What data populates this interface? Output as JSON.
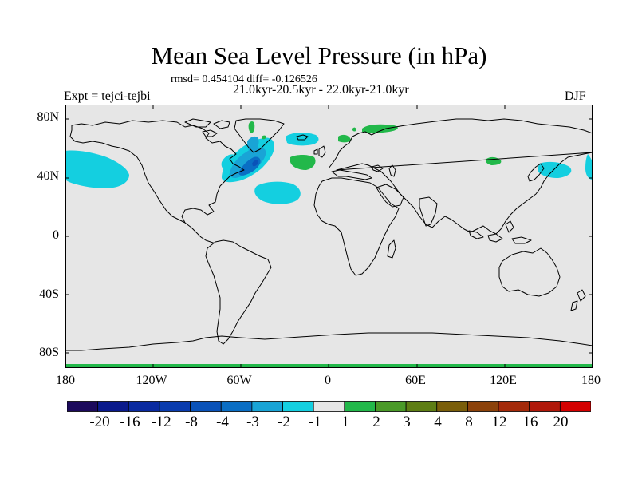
{
  "title": "Mean Sea Level Pressure (in hPa)",
  "stats_line": "rmsd= 0.454104 diff= -0.126526",
  "period_line": "21.0kyr-20.5kyr - 22.0kyr-21.0kyr",
  "left_label": "Expt = tejci-tejbi",
  "right_label": "DJF",
  "axes": {
    "lat_ticks": [
      "80N",
      "40N",
      "0",
      "40S",
      "80S"
    ],
    "lon_ticks": [
      "180",
      "120W",
      "60W",
      "0",
      "60E",
      "120E",
      "180"
    ]
  },
  "colorbar": {
    "labels": [
      "-20",
      "-16",
      "-12",
      "-8",
      "-4",
      "-3",
      "-2",
      "-1",
      "1",
      "2",
      "3",
      "4",
      "8",
      "12",
      "16",
      "20"
    ],
    "colors": [
      "#1c0a5c",
      "#0a1a8c",
      "#0a2aa0",
      "#0a3cae",
      "#0a52b8",
      "#0a6ec4",
      "#19a4d6",
      "#14cfe0",
      "#e6e6e6",
      "#22b84a",
      "#4a9a28",
      "#5e7e14",
      "#7a5e0a",
      "#8c420a",
      "#a42a0a",
      "#b0180a",
      "#d40000"
    ]
  },
  "colors": {
    "land_sea_background": "#e6e6e6",
    "coastline": "#000000"
  }
}
